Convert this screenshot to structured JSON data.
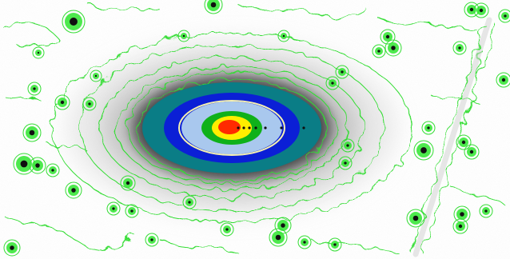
{
  "image": {
    "background_color": "#ffffff",
    "contour_color": "#33dd33",
    "colormap": [
      "#0a7d86",
      "#0b1fd6",
      "#a9c8ee",
      "#0fb11a",
      "#ffee00",
      "#ff2a00"
    ],
    "ring_color": "#f5f0b0",
    "star_color": "#101010"
  }
}
